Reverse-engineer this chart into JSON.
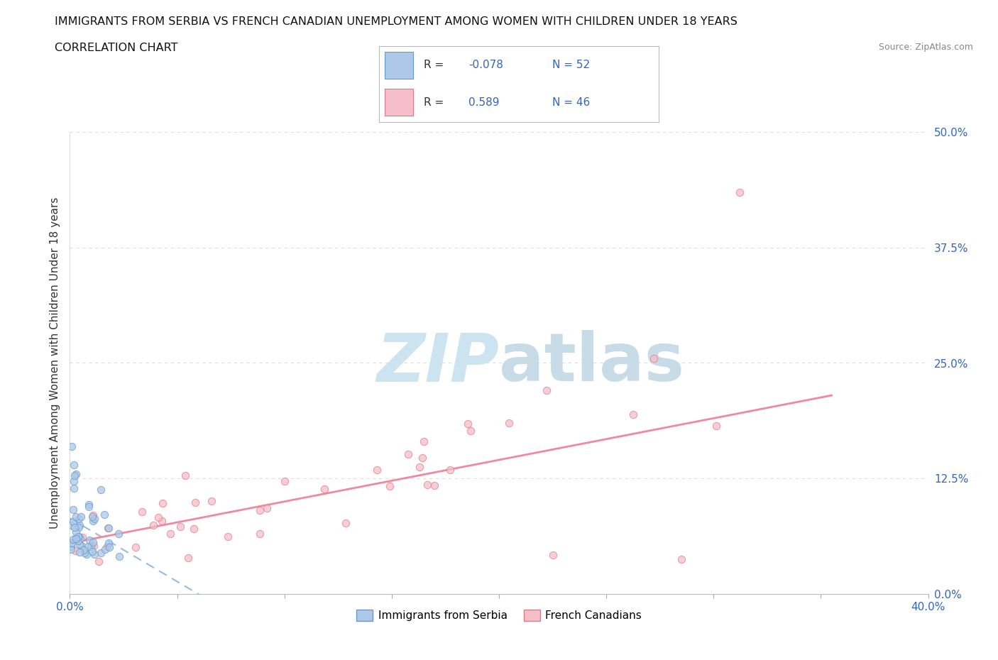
{
  "title": "IMMIGRANTS FROM SERBIA VS FRENCH CANADIAN UNEMPLOYMENT AMONG WOMEN WITH CHILDREN UNDER 18 YEARS",
  "subtitle": "CORRELATION CHART",
  "source": "Source: ZipAtlas.com",
  "ylabel": "Unemployment Among Women with Children Under 18 years",
  "xlim": [
    0.0,
    0.4
  ],
  "ylim": [
    0.0,
    0.5
  ],
  "yticks": [
    0.0,
    0.125,
    0.25,
    0.375,
    0.5
  ],
  "ytick_labels": [
    "0.0%",
    "12.5%",
    "25.0%",
    "37.5%",
    "50.0%"
  ],
  "xtick_show": [
    0.0,
    0.4
  ],
  "xtick_labels": [
    "0.0%",
    "40.0%"
  ],
  "serbia_R": -0.078,
  "serbia_N": 52,
  "french_R": 0.589,
  "french_N": 46,
  "serbia_color": "#adc8e8",
  "serbia_edge_color": "#6699cc",
  "french_color": "#f5bec8",
  "french_edge_color": "#e07888",
  "serbia_trend_color": "#99bbdd",
  "french_trend_color": "#f088a0",
  "background_color": "#ffffff",
  "grid_color": "#dddddd",
  "title_color": "#111111",
  "tick_color": "#3366bb",
  "ylabel_color": "#333333",
  "source_color": "#888888",
  "watermark_zip_color": "#cce4f0",
  "watermark_atlas_color": "#c8dce8"
}
